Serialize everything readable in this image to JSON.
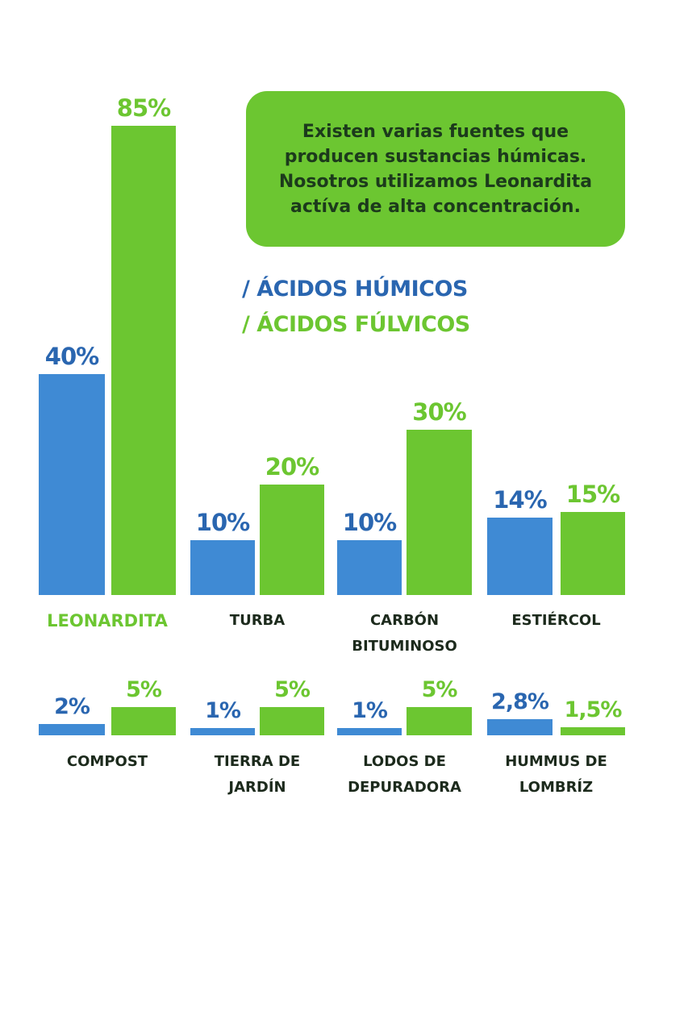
{
  "note": "Existen varias fuentes que producen sustancias húmicas. Nosotros utilizamos Leonardita actíva de alta concentración.",
  "colors": {
    "humic": "#3f8ad4",
    "humic_text": "#2a66b0",
    "fulvic": "#6cc631",
    "label": "#1c2a1c"
  },
  "chart_data": {
    "type": "bar",
    "legend": {
      "placement": "top-right",
      "entries": [
        "/ ÁCIDOS HÚMICOS",
        "/ ÁCIDOS FÚLVICOS"
      ]
    },
    "grid": false,
    "series_names": [
      "ÁCIDOS HÚMICOS",
      "ÁCIDOS FÚLVICOS"
    ],
    "groups": [
      {
        "category": "LEONARDITA",
        "humic": 40,
        "fulvic": 85,
        "humic_label": "40%",
        "fulvic_label": "85%",
        "highlight": true
      },
      {
        "category": "TURBA",
        "humic": 10,
        "fulvic": 20,
        "humic_label": "10%",
        "fulvic_label": "20%"
      },
      {
        "category": "CARBÓN BITUMINOSO",
        "humic": 10,
        "fulvic": 30,
        "humic_label": "10%",
        "fulvic_label": "30%"
      },
      {
        "category": "ESTIÉRCOL",
        "humic": 14,
        "fulvic": 15,
        "humic_label": "14%",
        "fulvic_label": "15%"
      },
      {
        "category": "COMPOST",
        "humic": 2,
        "fulvic": 5,
        "humic_label": "2%",
        "fulvic_label": "5%"
      },
      {
        "category": "TIERRA DE JARDÍN",
        "humic": 1,
        "fulvic": 5,
        "humic_label": "1%",
        "fulvic_label": "5%"
      },
      {
        "category": "LODOS DE DEPURADORA",
        "humic": 1,
        "fulvic": 5,
        "humic_label": "1%",
        "fulvic_label": "5%"
      },
      {
        "category": "HUMMUS DE LOMBRÍZ",
        "humic": 2.8,
        "fulvic": 1.5,
        "humic_label": "2,8%",
        "fulvic_label": "1,5%"
      }
    ]
  }
}
